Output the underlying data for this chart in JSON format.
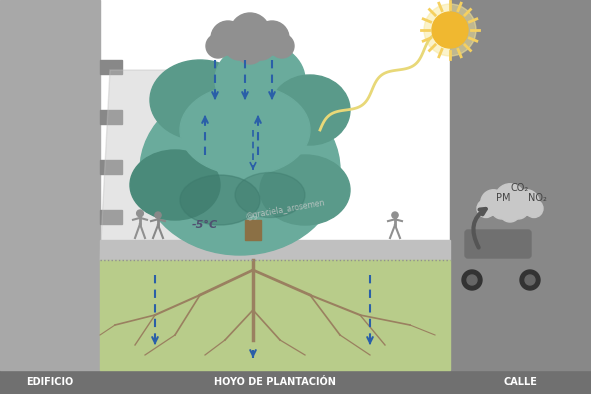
{
  "bg_color": "#ffffff",
  "building_color": "#a8a8a8",
  "building_slab_color": "#888888",
  "street_color": "#888888",
  "sidewalk_color": "#c0c0c0",
  "soil_color": "#b8cc8a",
  "soil_border_color": "#909090",
  "tree_canopy_color1": "#6aab9c",
  "tree_canopy_color2": "#5a9a8a",
  "tree_canopy_color3": "#4a8a7a",
  "tree_canopy_dark": "#3d7a6c",
  "tree_trunk_color": "#8b7045",
  "root_color": "#9a8060",
  "cloud_color": "#909090",
  "exhaust_cloud_color": "#c8c8c8",
  "rain_arrow_color": "#2a5fa8",
  "sun_body_color": "#f0b830",
  "sun_ray_color": "#f5d060",
  "solar_wave_color": "#e8d878",
  "exhaust_arrow_color": "#606060",
  "bottom_bar_color": "#707070",
  "shadow_color": "#c0c0c0",
  "label_edificio": "EDIFICIO",
  "label_hoyo": "HOYO DE PLANTACIÓN",
  "label_calle": "CALLE",
  "label_temp": "-5°C",
  "label_co2": "CO₂",
  "label_no2": "NO₂",
  "label_pm": "PM",
  "watermark": "@graciela_arosemen",
  "temp_color": "#505070"
}
